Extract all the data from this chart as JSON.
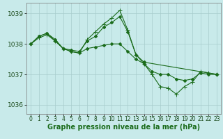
{
  "xlabel_label": "Graphe pression niveau de la mer (hPa)",
  "background_color": "#c8eaea",
  "grid_color": "#a8cccc",
  "line_color": "#1a6b1a",
  "marker_color": "#1a6b1a",
  "ylim": [
    1035.7,
    1039.35
  ],
  "yticks": [
    1036,
    1037,
    1038,
    1039
  ],
  "xlim": [
    -0.5,
    23.5
  ],
  "xticks": [
    0,
    1,
    2,
    3,
    4,
    5,
    6,
    7,
    8,
    9,
    10,
    11,
    12,
    13,
    14,
    15,
    16,
    17,
    18,
    19,
    20,
    21,
    22,
    23
  ],
  "series": [
    {
      "x": [
        0,
        1,
        2,
        3,
        4,
        5,
        6,
        7,
        8,
        9,
        10,
        11,
        12,
        13,
        14,
        23
      ],
      "y": [
        1038.0,
        1038.25,
        1038.35,
        1038.15,
        1037.85,
        1037.8,
        1037.75,
        1038.1,
        1038.25,
        1038.55,
        1038.7,
        1038.9,
        1038.4,
        1037.65,
        1037.4,
        1037.0
      ],
      "marker": "D"
    },
    {
      "x": [
        0,
        1,
        2,
        3,
        4,
        5,
        6,
        7,
        8,
        9,
        10,
        11,
        12,
        13,
        14,
        15,
        16,
        17,
        18,
        19,
        20,
        21,
        22,
        23
      ],
      "y": [
        1038.0,
        1038.25,
        1038.35,
        1038.1,
        1037.85,
        1037.75,
        1037.7,
        1037.85,
        1037.9,
        1037.95,
        1038.0,
        1038.0,
        1037.75,
        1037.5,
        1037.35,
        1037.1,
        1037.0,
        1037.0,
        1036.85,
        1036.8,
        1036.85,
        1037.05,
        1037.0,
        1037.0
      ],
      "marker": "D"
    },
    {
      "x": [
        0,
        1,
        2,
        3,
        4,
        5,
        6,
        7,
        8,
        9,
        10,
        11,
        12,
        13,
        14,
        15,
        16,
        17,
        18,
        19,
        20,
        21,
        22,
        23
      ],
      "y": [
        1038.0,
        1038.2,
        1038.3,
        1038.1,
        1037.85,
        1037.75,
        1037.7,
        1038.15,
        1038.4,
        1038.65,
        1038.85,
        1039.1,
        1038.45,
        1037.65,
        1037.35,
        1037.0,
        1036.6,
        1036.55,
        1036.35,
        1036.6,
        1036.75,
        1037.1,
        1037.05,
        1037.0
      ],
      "marker": "+"
    }
  ],
  "xlabel_fontsize": 7,
  "ytick_fontsize": 6.5,
  "xtick_fontsize": 5.5
}
